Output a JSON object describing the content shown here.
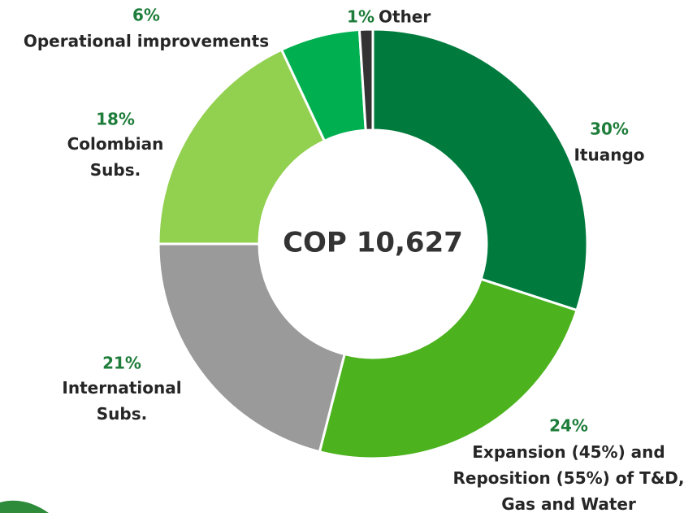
{
  "chart_data": {
    "type": "pie",
    "donut": true,
    "center_label": "COP 10,627",
    "categories": [
      "Ituango",
      "Expansion (45%) and\nReposition (55%) of T&D,\nGas and Water",
      "International\nSubs.",
      "Colombian\nSubs.",
      "Operational improvements",
      "Other"
    ],
    "values": [
      30,
      24,
      21,
      18,
      6,
      1
    ],
    "value_labels": [
      "30%",
      "24%",
      "21%",
      "18%",
      "6%",
      "1%"
    ],
    "colors": [
      "#007a3d",
      "#4cb31e",
      "#9a9a9a",
      "#92d050",
      "#00b050",
      "#333333"
    ]
  }
}
